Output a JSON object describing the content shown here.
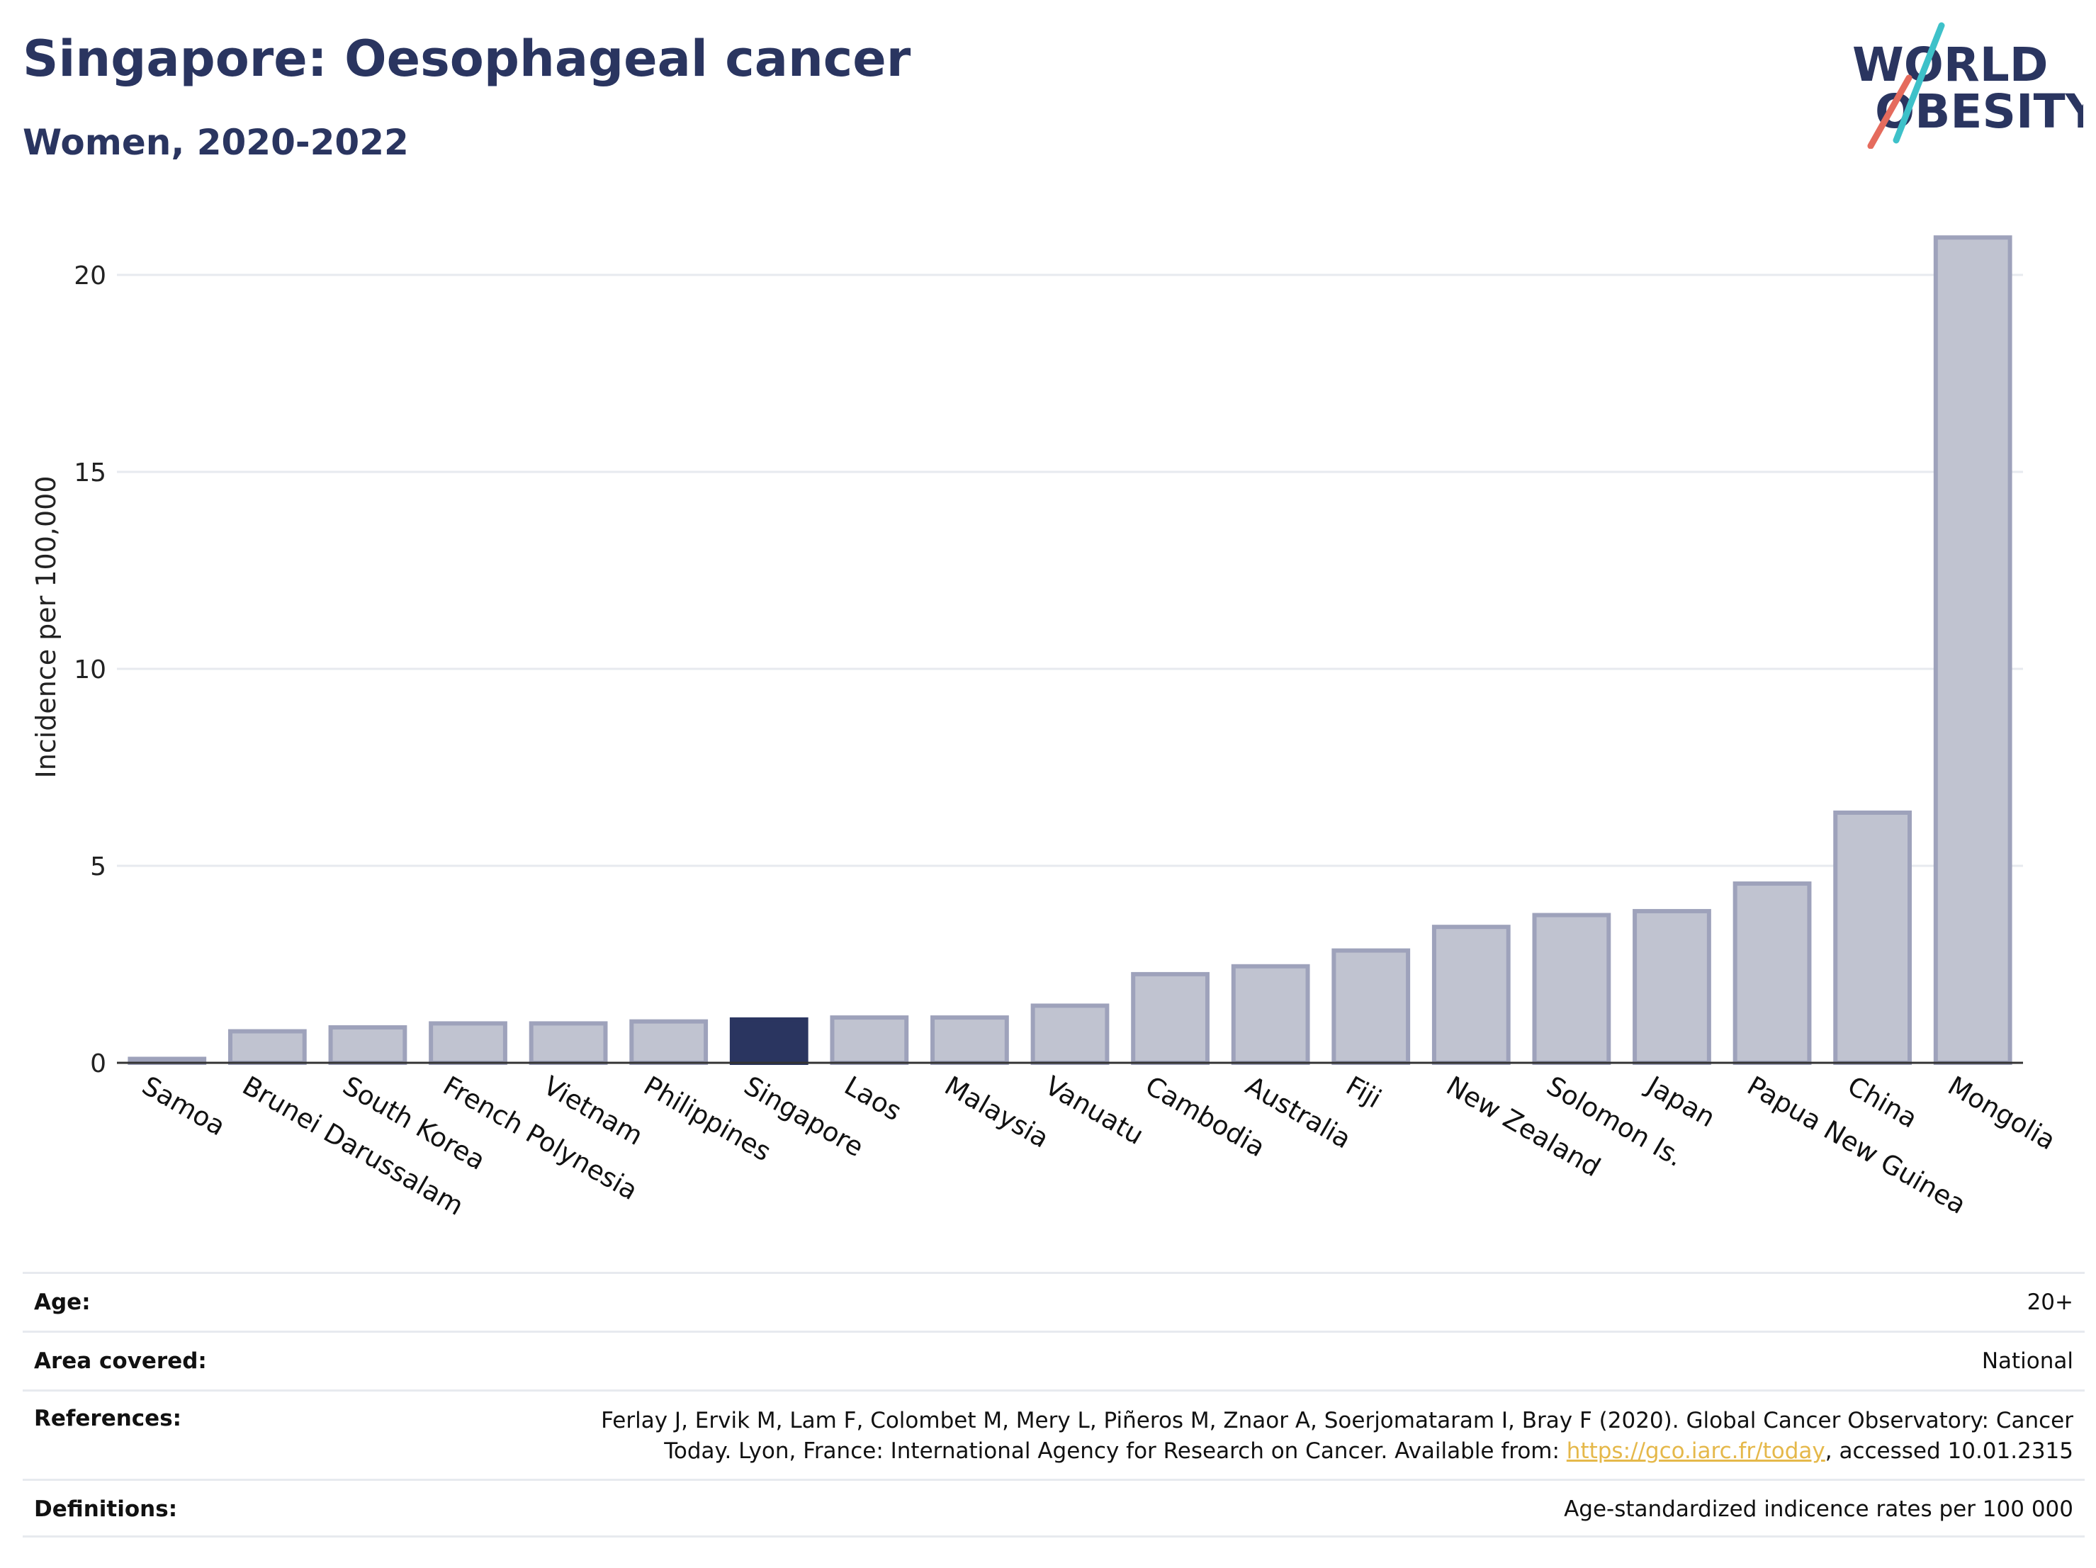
{
  "header": {
    "title": "Singapore: Oesophageal cancer",
    "subtitle": "Women, 2020-2022"
  },
  "logo": {
    "line1": "WORLD",
    "line2": "OBESITY"
  },
  "chart_data": {
    "type": "bar",
    "title": "Singapore: Oesophageal cancer",
    "subtitle": "Women, 2020-2022",
    "xlabel": "",
    "ylabel": "Incidence per 100,000",
    "ylim": [
      0,
      22
    ],
    "yticks": [
      0,
      5,
      10,
      15,
      20
    ],
    "grid": true,
    "highlight": "Singapore",
    "categories": [
      "Samoa",
      "Brunei Darussalam",
      "South Korea",
      "French Polynesia",
      "Vietnam",
      "Philippines",
      "Singapore",
      "Laos",
      "Malaysia",
      "Vanuatu",
      "Cambodia",
      "Australia",
      "Fiji",
      "New Zealand",
      "Solomon Is.",
      "Japan",
      "Papua New Guinea",
      "China",
      "Mongolia"
    ],
    "values": [
      0.1,
      0.8,
      0.9,
      1.0,
      1.0,
      1.05,
      1.1,
      1.15,
      1.15,
      1.45,
      2.25,
      2.45,
      2.85,
      3.45,
      3.75,
      3.85,
      4.55,
      6.35,
      20.95
    ],
    "colors": {
      "bar_fill": "#c0c3d0",
      "bar_edge": "#9ea2bb",
      "highlight": "#2a3560",
      "grid": "#e7eaef",
      "axis": "#333333"
    }
  },
  "meta": {
    "age_label": "Age:",
    "age_value": "20+",
    "area_label": "Area covered:",
    "area_value": "National",
    "refs_label": "References:",
    "refs_line1": "Ferlay J, Ervik M, Lam F, Colombet M, Mery L, Piñeros M, Znaor A, Soerjomataram I, Bray F (2020). Global Cancer Observatory: Cancer",
    "refs_line2_pre": "Today. Lyon, France: International Agency for Research on Cancer. Available from: ",
    "refs_link": "https://gco.iarc.fr/today",
    "refs_line2_post": ", accessed 10.01.2315",
    "defs_label": "Definitions:",
    "defs_value": "Age-standardized indicence rates per 100 000"
  }
}
